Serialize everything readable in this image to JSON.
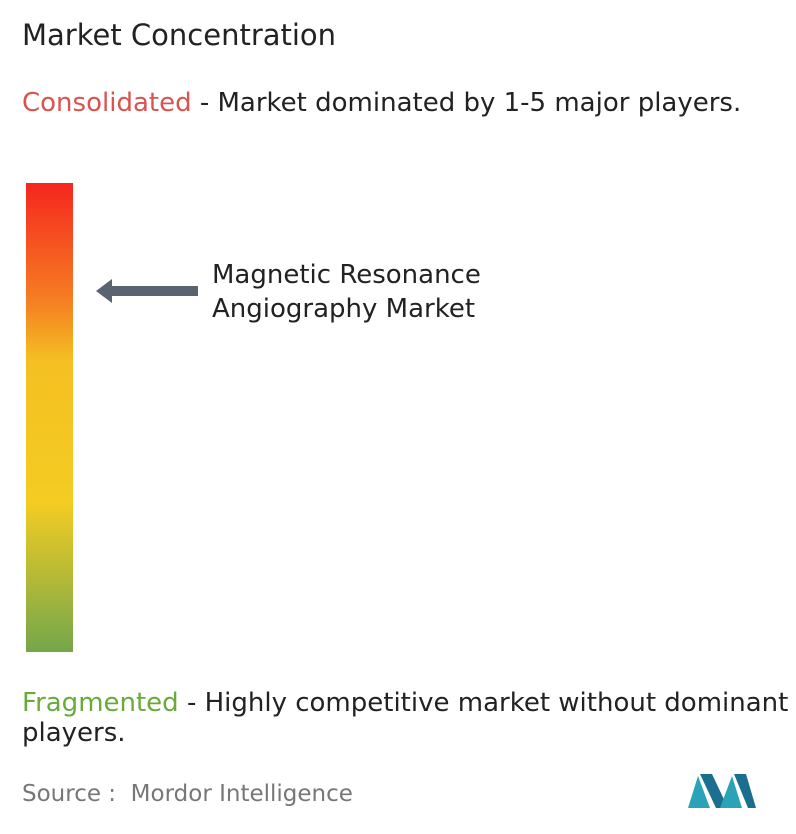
{
  "header": {
    "title": "Market Concentration"
  },
  "consolidated": {
    "label": "Consolidated",
    "description": " - Market dominated by 1-5 major players."
  },
  "marker": {
    "label": "Magnetic Resonance Angiography Market"
  },
  "fragmented": {
    "label": "Fragmented",
    "description": " - Highly competitive market without dominant players."
  },
  "footer": {
    "source": "Source :  Mordor Intelligence"
  }
}
